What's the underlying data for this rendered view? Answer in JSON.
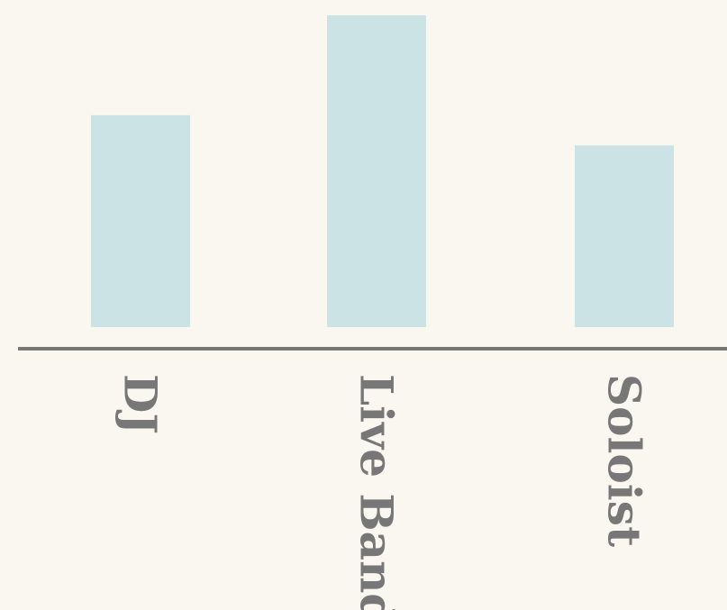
{
  "colors": {
    "background": "#faf7f1",
    "bar": "#cce3e5",
    "axis": "#777777",
    "label": "#777777"
  },
  "chart_data": {
    "type": "bar",
    "categories": [
      "DJ",
      "Live Band",
      "Soloist"
    ],
    "values": [
      70,
      103,
      60
    ],
    "ylim": [
      0,
      103
    ],
    "title": "",
    "xlabel": "",
    "ylabel": "",
    "grid": false,
    "legend": "none",
    "x_tick_label_rotation": "90deg clockwise"
  }
}
